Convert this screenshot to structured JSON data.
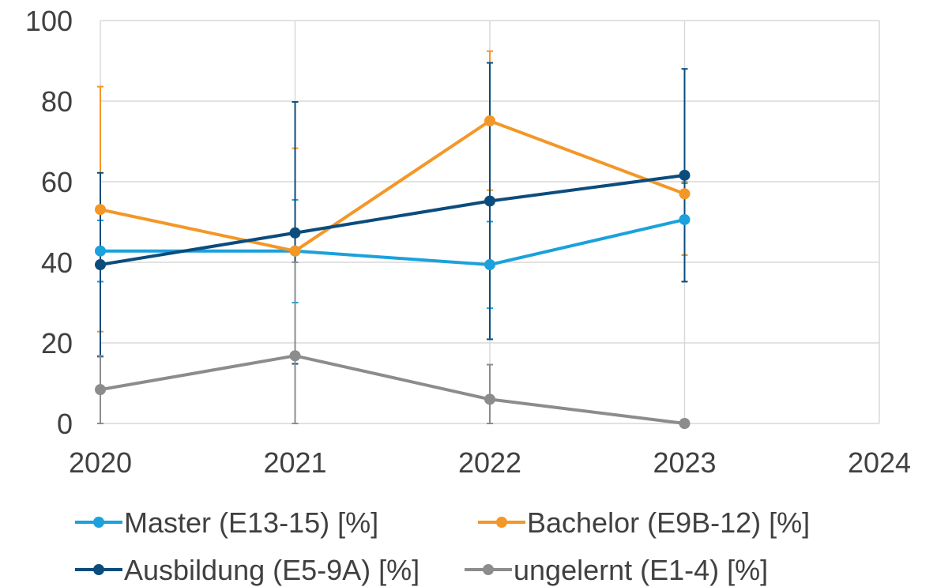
{
  "chart_data": {
    "type": "line",
    "xlim": [
      2020,
      2024
    ],
    "ylim": [
      0,
      100
    ],
    "x_ticks": [
      "2020",
      "2021",
      "2022",
      "2023",
      "2024"
    ],
    "y_ticks": [
      "0",
      "20",
      "40",
      "60",
      "80",
      "100"
    ],
    "grid": true,
    "legend_position": "bottom",
    "series": [
      {
        "name": "Master (E13-15) [%]",
        "color": "#1ba1dc",
        "x": [
          2020,
          2021,
          2022,
          2023
        ],
        "values": [
          42.8,
          42.8,
          39.4,
          50.6
        ],
        "error_low": [
          35.2,
          30.0,
          28.6,
          41.8
        ],
        "error_high": [
          50.4,
          55.5,
          50.1,
          59.6
        ]
      },
      {
        "name": "Bachelor (E9B-12) [%]",
        "color": "#f39727",
        "x": [
          2020,
          2021,
          2022,
          2023
        ],
        "values": [
          53.1,
          42.8,
          75.1,
          57.0
        ],
        "error_low": [
          22.8,
          17.4,
          57.9,
          41.8
        ],
        "error_high": [
          83.6,
          68.3,
          92.4,
          60.0
        ]
      },
      {
        "name": "Ausbildung (E5-9A) [%]",
        "color": "#0b4c7d",
        "x": [
          2020,
          2021,
          2022,
          2023
        ],
        "values": [
          39.4,
          47.3,
          55.2,
          61.6
        ],
        "error_low": [
          16.6,
          14.8,
          20.9,
          35.2
        ],
        "error_high": [
          62.2,
          79.8,
          89.5,
          88.0
        ]
      },
      {
        "name": "ungelernt (E1-4) [%]",
        "color": "#8c8c8c",
        "x": [
          2020,
          2021,
          2022,
          2023
        ],
        "values": [
          8.4,
          16.8,
          6.0,
          0.0
        ],
        "error_low": [
          0.0,
          0.0,
          0.0,
          0.0
        ],
        "error_high": [
          16.8,
          40.0,
          14.6,
          0.0
        ]
      }
    ]
  }
}
